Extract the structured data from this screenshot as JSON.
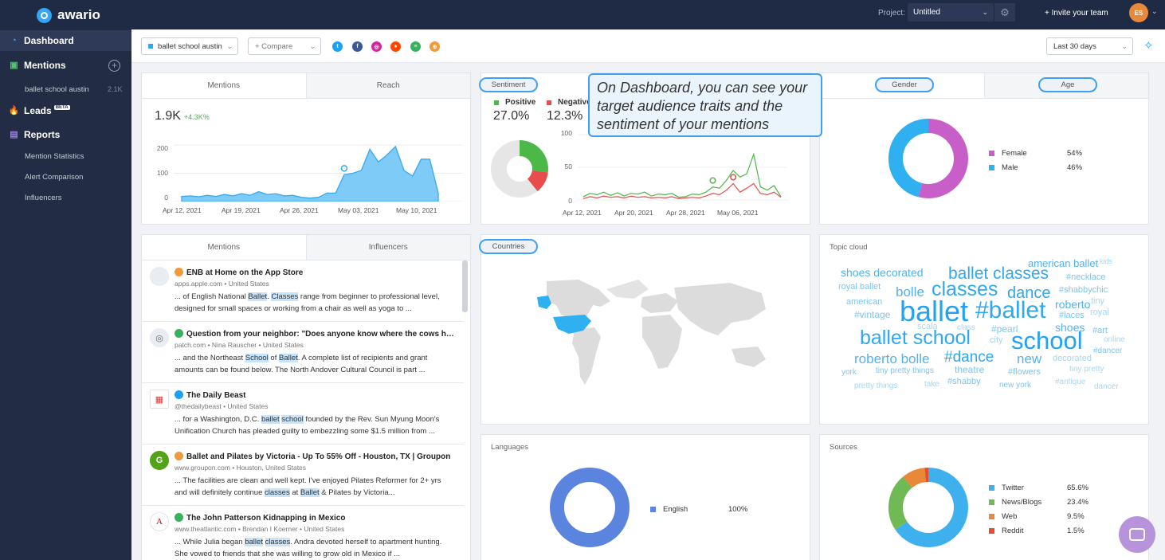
{
  "topbar": {
    "logo": "awario",
    "project_label": "Project:",
    "project_value": "Untitled",
    "invite": "+ Invite your team",
    "avatar": "ES"
  },
  "sidebar": {
    "dashboard": "Dashboard",
    "mentions": "Mentions",
    "alert_name": "ballet school austin",
    "alert_count": "2.1K",
    "leads": "Leads",
    "leads_badge": "BETA",
    "reports": "Reports",
    "report_items": [
      "Mention Statistics",
      "Alert Comparison",
      "Influencers"
    ]
  },
  "filters": {
    "alert": "ballet school austin",
    "compare": "+ Compare",
    "period": "Last 30 days",
    "sources": [
      "twitter-icon",
      "facebook-icon",
      "instagram-icon",
      "reddit-icon",
      "news-icon",
      "web-icon"
    ]
  },
  "mentions_card": {
    "tabs": [
      "Mentions",
      "Reach"
    ],
    "total": "1.9K",
    "delta": "+4.3K%",
    "yticks": [
      "200",
      "100",
      "0"
    ],
    "xticks": [
      "Apr 12, 2021",
      "Apr 19, 2021",
      "Apr 26, 2021",
      "May 03, 2021",
      "May 10, 2021"
    ]
  },
  "sentiment_card": {
    "tab": "Sentiment",
    "positive_label": "Positive",
    "positive_value": "27.0%",
    "negative_label": "Negative",
    "negative_value": "12.3%",
    "yticks": [
      "100",
      "50",
      "0"
    ],
    "xticks": [
      "Apr 12, 2021",
      "Apr 20, 2021",
      "Apr 28, 2021",
      "May 06, 2021"
    ],
    "positive_pct": 27.0,
    "negative_pct": 12.3
  },
  "tooltip": {
    "text": "On Dashboard, you can see your target audience traits and the sentiment of your mentions"
  },
  "demographics_card": {
    "tabs": [
      "Gender",
      "Age"
    ],
    "legend": [
      {
        "label": "Female",
        "value": "54%",
        "color": "#c85ec7"
      },
      {
        "label": "Male",
        "value": "46%",
        "color": "#2fb0f0"
      }
    ]
  },
  "feed_card": {
    "tabs": [
      "Mentions",
      "Influencers"
    ],
    "items": [
      {
        "icon": "apple-icon",
        "src": "web",
        "title": "ENB at Home on the App Store",
        "meta": "apps.apple.com  •  United States",
        "pre": "... of English National ",
        "h1": "Ballet",
        "mid": ". ",
        "h2": "Classes",
        "post": " range from beginner to professional level, designed for small spaces or working from a chair as well as yoga to ..."
      },
      {
        "icon": "globe-icon",
        "src": "news",
        "title": "Question from your neighbor: \"Does anyone know where the cows have g...",
        "meta": "patch.com  •  Nina Rauscher  •  United States",
        "pre": "... and the Northeast ",
        "h1": "School",
        "mid": " of ",
        "h2": "Ballet",
        "post": ". A complete list of recipients and grant amounts can be found below. The North Andover Cultural Council is part ..."
      },
      {
        "icon": "dailybeast-icon",
        "src": "twitter",
        "title": "The Daily Beast",
        "meta": "@thedailybeast  •  United States",
        "pre": "... for a Washington, D.C. ",
        "h1": "ballet",
        "mid": " ",
        "h2": "school",
        "post": " founded by the Rev. Sun Myung Moon's Unification Church has pleaded guilty to embezzling some $1.5 million from ..."
      },
      {
        "icon": "groupon-icon",
        "src": "web",
        "title": "Ballet and Pilates by Victoria - Up To 55% Off - Houston, TX | Groupon",
        "meta": "www.groupon.com  •  Houston, United States",
        "pre": "... The facilities are clean and well kept. I've enjoyed Pilates Reformer for 2+ yrs and will definitely continue ",
        "h1": "classes",
        "mid": " at ",
        "h2": "Ballet",
        "post": " & Pilates by Victoria..."
      },
      {
        "icon": "atlantic-icon",
        "src": "news",
        "title": "The John Patterson Kidnapping in Mexico",
        "meta": "www.theatlantic.com  •  Brendan I Koerner  •  United States",
        "pre": "... While Julia began ",
        "h1": "ballet",
        "mid": " ",
        "h2": "classes",
        "post": ". Andra devoted herself to apartment hunting. She vowed to friends that she was willing to grow old in Mexico if ..."
      }
    ]
  },
  "countries_card": {
    "tab": "Countries"
  },
  "topic_cloud": {
    "title": "Topic cloud",
    "words": [
      "shoes decorated",
      "ballet classes",
      "american ballet",
      "kids",
      "royal ballet",
      "bolle",
      "classes",
      "dance",
      "#necklace",
      "#shabbychic",
      "american",
      "ballet",
      "#ballet",
      "roberto",
      "tiny",
      "#vintage",
      "#laces",
      "royal",
      "scala",
      "class",
      "#pearl",
      "shoes",
      "#art",
      "ballet school",
      "city",
      "school",
      "online",
      "#dancer",
      "roberto bolle",
      "#dance",
      "new",
      "decorated",
      "york",
      "tiny pretty things",
      "theatre",
      "#flowers",
      "tiny pretty",
      "pretty things",
      "take",
      "#shabby",
      "new york",
      "#antique",
      "dancer"
    ]
  },
  "languages_card": {
    "title": "Languages",
    "legend": [
      {
        "label": "English",
        "value": "100%",
        "color": "#5b84de"
      }
    ]
  },
  "sources_card": {
    "title": "Sources",
    "legend": [
      {
        "label": "Twitter",
        "value": "65.6%",
        "color": "#3fb0ee"
      },
      {
        "label": "News/Blogs",
        "value": "23.4%",
        "color": "#6fba54"
      },
      {
        "label": "Web",
        "value": "9.5%",
        "color": "#e8883a"
      },
      {
        "label": "Reddit",
        "value": "1.5%",
        "color": "#e84c2a"
      }
    ]
  },
  "chart_data": [
    {
      "type": "area",
      "title": "",
      "x": [
        "Apr 12",
        "Apr 13",
        "Apr 14",
        "Apr 15",
        "Apr 16",
        "Apr 17",
        "Apr 18",
        "Apr 19",
        "Apr 20",
        "Apr 21",
        "Apr 22",
        "Apr 23",
        "Apr 24",
        "Apr 25",
        "Apr 26",
        "Apr 27",
        "Apr 28",
        "Apr 29",
        "Apr 30",
        "May 01",
        "May 02",
        "May 03",
        "May 04",
        "May 05",
        "May 06",
        "May 07",
        "May 08",
        "May 09",
        "May 10",
        "May 11",
        "May 12"
      ],
      "series": [
        {
          "name": "Mentions",
          "values": [
            18,
            20,
            17,
            22,
            18,
            25,
            20,
            28,
            22,
            35,
            25,
            28,
            20,
            22,
            15,
            12,
            15,
            30,
            30,
            95,
            100,
            110,
            185,
            140,
            165,
            195,
            110,
            90,
            150,
            150,
            30
          ]
        }
      ],
      "ylim": [
        0,
        220
      ]
    },
    {
      "type": "line",
      "title": "",
      "x": [
        "Apr 12",
        "Apr 13",
        "Apr 14",
        "Apr 15",
        "Apr 16",
        "Apr 17",
        "Apr 18",
        "Apr 19",
        "Apr 20",
        "Apr 21",
        "Apr 22",
        "Apr 23",
        "Apr 24",
        "Apr 25",
        "Apr 26",
        "Apr 27",
        "Apr 28",
        "Apr 29",
        "Apr 30",
        "May 01",
        "May 02",
        "May 03",
        "May 04",
        "May 05",
        "May 06",
        "May 07",
        "May 08",
        "May 09",
        "May 10",
        "May 11"
      ],
      "series": [
        {
          "name": "Positive",
          "values": [
            5,
            10,
            8,
            12,
            7,
            11,
            6,
            10,
            9,
            12,
            6,
            9,
            8,
            10,
            4,
            5,
            9,
            8,
            12,
            20,
            18,
            30,
            45,
            35,
            40,
            70,
            20,
            15,
            22,
            5
          ]
        },
        {
          "name": "Negative",
          "values": [
            2,
            5,
            3,
            6,
            4,
            5,
            3,
            6,
            4,
            5,
            3,
            4,
            3,
            5,
            2,
            3,
            4,
            3,
            6,
            10,
            8,
            15,
            25,
            12,
            18,
            25,
            10,
            8,
            12,
            4
          ]
        }
      ],
      "ylim": [
        0,
        100
      ]
    },
    {
      "type": "pie",
      "title": "",
      "categories": [
        "Female",
        "Male"
      ],
      "values": [
        54,
        46
      ]
    },
    {
      "type": "pie",
      "title": "",
      "categories": [
        "Positive",
        "Negative",
        "Neutral"
      ],
      "values": [
        27.0,
        12.3,
        60.7
      ]
    },
    {
      "type": "pie",
      "title": "",
      "categories": [
        "English"
      ],
      "values": [
        100
      ]
    },
    {
      "type": "pie",
      "title": "",
      "categories": [
        "Twitter",
        "News/Blogs",
        "Web",
        "Reddit"
      ],
      "values": [
        65.6,
        23.4,
        9.5,
        1.5
      ]
    }
  ]
}
